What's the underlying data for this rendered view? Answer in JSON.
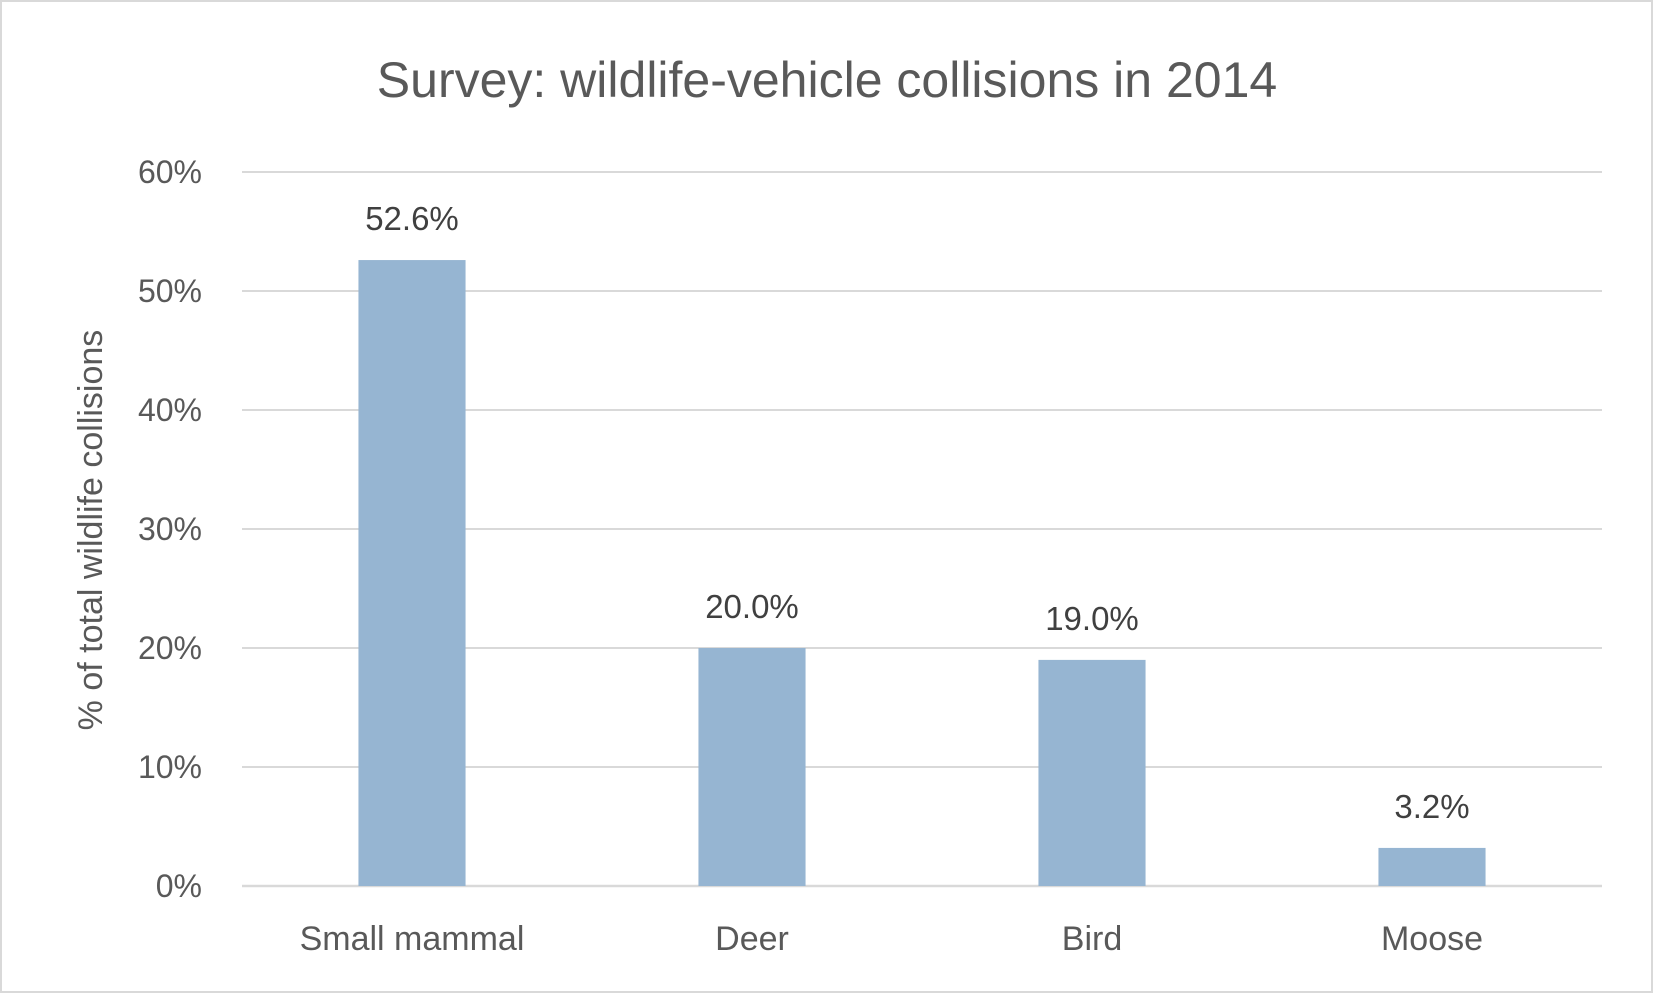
{
  "chart_data": {
    "type": "bar",
    "title": "Survey: wildlife-vehicle collisions in 2014",
    "xlabel": "",
    "ylabel": "% of total wildlife collisions",
    "categories": [
      "Small mammal",
      "Deer",
      "Bird",
      "Moose"
    ],
    "values": [
      52.6,
      20.0,
      19.0,
      3.2
    ],
    "data_labels": [
      "52.6%",
      "20.0%",
      "19.0%",
      "3.2%"
    ],
    "ylim": [
      0,
      60
    ],
    "yticks": [
      0,
      10,
      20,
      30,
      40,
      50,
      60
    ],
    "ytick_labels": [
      "0%",
      "10%",
      "20%",
      "30%",
      "40%",
      "50%",
      "60%"
    ],
    "grid": true,
    "legend": "none",
    "bar_color": "#96B5D2"
  }
}
